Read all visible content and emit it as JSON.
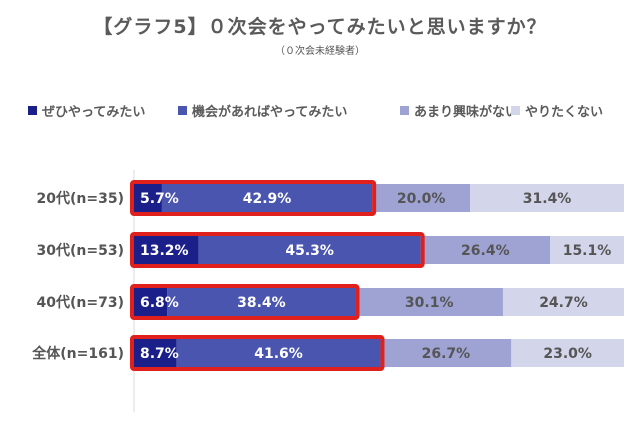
{
  "page": {
    "title": "【グラフ5】０次会をやってみたいと思いますか？",
    "subtitle": "（０次会未経験者）"
  },
  "chart_data": {
    "type": "bar",
    "orientation": "horizontal",
    "stacked": true,
    "percent_stacked": true,
    "grid": false,
    "legend_position": "top",
    "title": "【グラフ5】０次会をやってみたいと思いますか？",
    "subtitle": "（０次会未経験者）",
    "categories": [
      "20代(n=35)",
      "30代(n=53)",
      "40代(n=73)",
      "全体(n=161)"
    ],
    "series": [
      {
        "name": "ぜひやってみたい",
        "color": "#1b1f8a",
        "values": [
          5.7,
          13.2,
          6.8,
          8.7
        ],
        "labels": [
          "5.7%",
          "13.2%",
          "6.8%",
          "8.7%"
        ]
      },
      {
        "name": "機会があればやってみたい",
        "color": "#4a55b0",
        "values": [
          42.9,
          45.3,
          38.4,
          41.6
        ],
        "labels": [
          "42.9%",
          "45.3%",
          "38.4%",
          "41.6%"
        ]
      },
      {
        "name": "あまり興味がない",
        "color": "#9ea3d3",
        "values": [
          20.0,
          26.4,
          30.1,
          26.7
        ],
        "labels": [
          "20.0%",
          "26.4%",
          "30.1%",
          "26.7%"
        ]
      },
      {
        "name": "やりたくない",
        "color": "#d3d5ea",
        "values": [
          31.4,
          15.1,
          24.7,
          23.0
        ],
        "labels": [
          "31.4%",
          "15.1%",
          "24.7%",
          "23.0%"
        ]
      }
    ],
    "highlight": {
      "series_indices": [
        0,
        1
      ],
      "color": "#e0201d"
    }
  }
}
